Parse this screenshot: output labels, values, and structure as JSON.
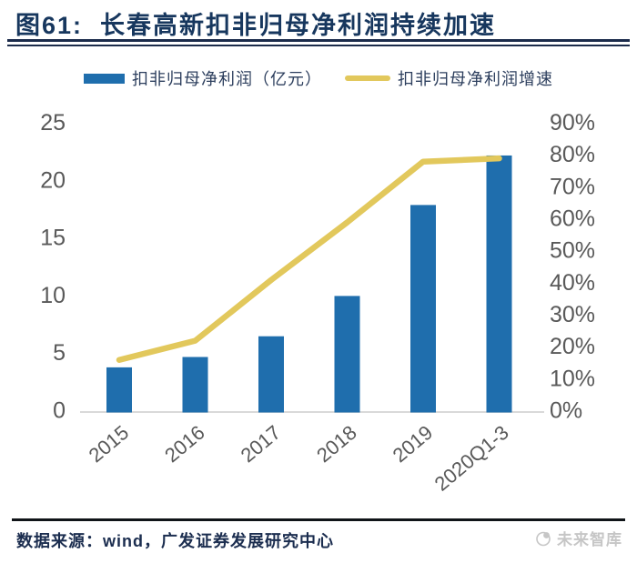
{
  "header": {
    "title": "图61:  长春高新扣非归母净利润持续加速"
  },
  "legend": {
    "bar_label": "扣非归母净利润（亿元）",
    "line_label": "扣非归母净利润增速"
  },
  "footer": {
    "source": "数据来源：wind，广发证券发展研究中心",
    "watermark": "未来智库"
  },
  "colors": {
    "title_navy": "#17375E",
    "bar_blue": "#1F6EAD",
    "line_yellow": "#E2C85C",
    "tick_gray": "#595959",
    "baseline_gray": "#D9D9D9",
    "watermark_gray": "#C6C6C6"
  },
  "chart_data": {
    "type": "bar+line",
    "title": "长春高新扣非归母净利润持续加速",
    "categories": [
      "2015",
      "2016",
      "2017",
      "2018",
      "2019",
      "2020Q1-3"
    ],
    "series": [
      {
        "name": "扣非归母净利润（亿元）",
        "type": "bar",
        "axis": "left",
        "color": "#1F6EAD",
        "values": [
          3.8,
          4.7,
          6.5,
          10.0,
          17.9,
          22.2
        ]
      },
      {
        "name": "扣非归母净利润增速",
        "type": "line",
        "axis": "right",
        "color": "#E2C85C",
        "values": [
          16,
          22,
          41,
          59,
          78,
          79
        ]
      }
    ],
    "left_axis": {
      "min": 0,
      "max": 25,
      "step": 5,
      "tick_labels": [
        "0",
        "5",
        "10",
        "15",
        "20",
        "25"
      ]
    },
    "right_axis": {
      "min": 0,
      "max": 90,
      "step": 10,
      "unit": "%",
      "tick_labels": [
        "0%",
        "10%",
        "20%",
        "30%",
        "40%",
        "50%",
        "60%",
        "70%",
        "80%",
        "90%"
      ]
    },
    "grid": false,
    "legend_position": "top"
  }
}
